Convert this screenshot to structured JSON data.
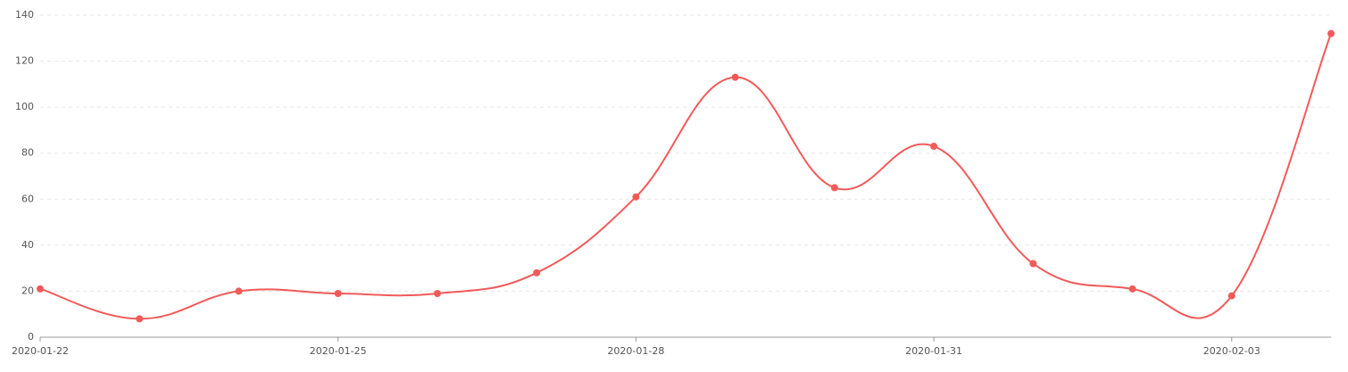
{
  "chart_data": {
    "type": "line",
    "categories": [
      "2020-01-22",
      null,
      null,
      "2020-01-25",
      null,
      null,
      "2020-01-28",
      null,
      null,
      "2020-01-31",
      null,
      null,
      "2020-02-03",
      null
    ],
    "series": [
      {
        "color": "#f25a5a",
        "values": [
          21,
          8,
          20,
          19,
          19,
          28,
          61,
          113,
          65,
          83,
          32,
          21,
          18,
          132
        ]
      }
    ],
    "ylim": [
      0,
      140
    ],
    "yticks": [
      0,
      20,
      40,
      60,
      80,
      100,
      120,
      140
    ],
    "grid": true,
    "smooth": true
  }
}
